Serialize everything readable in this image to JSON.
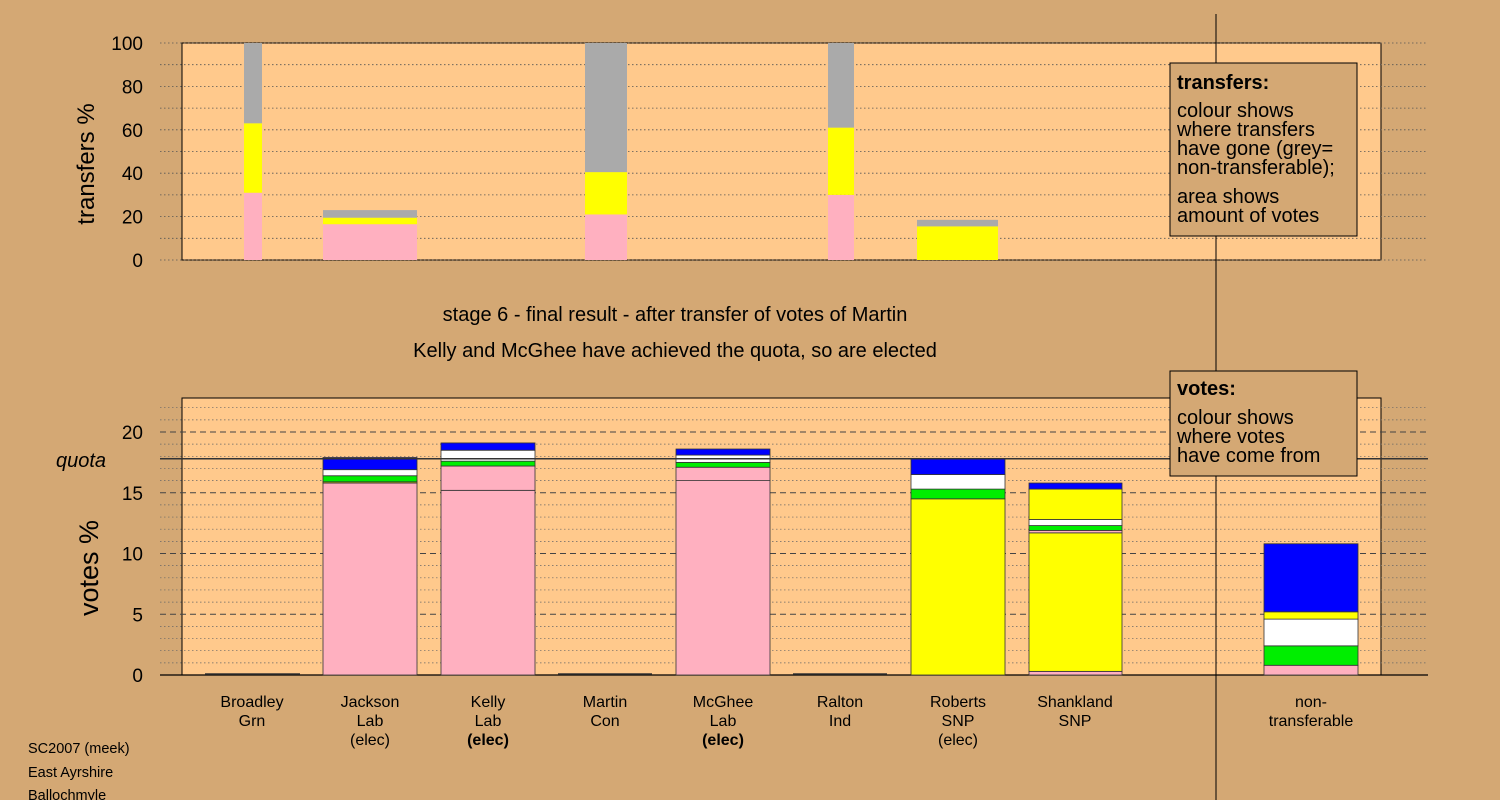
{
  "title_line1": "stage 6 - final result - after transfer of votes of Martin",
  "title_line2": "Kelly and McGhee have achieved the quota, so are elected",
  "footer": [
    "SC2007 (meek)",
    "East Ayrshire",
    "Ballochmyle"
  ],
  "legend_transfers": {
    "title": "transfers:",
    "lines1": [
      "colour shows",
      "where transfers",
      "have gone (grey=",
      "non-transferable);"
    ],
    "lines2": [
      "area shows",
      "amount of votes"
    ]
  },
  "legend_votes": {
    "title": "votes:",
    "lines": [
      "colour shows",
      "where votes",
      "have come from"
    ]
  },
  "colors": {
    "background": "#d4a874",
    "plot_bg": "#ffc98c",
    "Lab": "#ffb0c0",
    "SNP": "#ffff00",
    "Grn": "#00ee00",
    "Ind": "#ffffff",
    "Con": "#0000ff",
    "nontransferable": "#aaaaaa"
  },
  "chart_data": [
    {
      "type": "bar",
      "name": "transfers",
      "ylabel": "transfers %",
      "ylim": [
        0,
        100
      ],
      "yticks": [
        0,
        20,
        40,
        60,
        80,
        100
      ],
      "categories": [
        "Broadley",
        "Jackson",
        "Kelly",
        "Martin",
        "McGhee",
        "Ralton",
        "Roberts",
        "Shankland"
      ],
      "bars": [
        {
          "candidate": "Broadley",
          "segments": [
            {
              "color": "Lab",
              "value": 31
            },
            {
              "color": "SNP",
              "value": 32
            },
            {
              "color": "nontransferable",
              "value": 37
            }
          ]
        },
        {
          "candidate": "Jackson",
          "segments": [
            {
              "color": "Lab",
              "value": 16.5
            },
            {
              "color": "SNP",
              "value": 3
            },
            {
              "color": "nontransferable",
              "value": 3.5
            }
          ]
        },
        {
          "candidate": "Martin",
          "segments": [
            {
              "color": "Lab",
              "value": 21
            },
            {
              "color": "SNP",
              "value": 19.5
            },
            {
              "color": "nontransferable",
              "value": 59.5
            }
          ]
        },
        {
          "candidate": "Ralton",
          "segments": [
            {
              "color": "Lab",
              "value": 30
            },
            {
              "color": "SNP",
              "value": 31
            },
            {
              "color": "nontransferable",
              "value": 39
            }
          ]
        },
        {
          "candidate": "Roberts",
          "segments": [
            {
              "color": "SNP",
              "value": 15.5
            },
            {
              "color": "nontransferable",
              "value": 3
            }
          ]
        }
      ]
    },
    {
      "type": "bar",
      "name": "votes",
      "ylabel": "votes %",
      "ylim": [
        0,
        22
      ],
      "yticks": [
        0,
        5,
        10,
        15,
        20
      ],
      "quota": 17.8,
      "quota_label": "quota",
      "categories": [
        {
          "name": "Broadley",
          "party": "Grn",
          "status": ""
        },
        {
          "name": "Jackson",
          "party": "Lab",
          "status": "(elec)"
        },
        {
          "name": "Kelly",
          "party": "Lab",
          "status": "(elec)"
        },
        {
          "name": "Martin",
          "party": "Con",
          "status": ""
        },
        {
          "name": "McGhee",
          "party": "Lab",
          "status": "(elec)"
        },
        {
          "name": "Ralton",
          "party": "Ind",
          "status": ""
        },
        {
          "name": "Roberts",
          "party": "SNP",
          "status": "(elec)"
        },
        {
          "name": "Shankland",
          "party": "SNP",
          "status": ""
        },
        {
          "name": "non-",
          "party": "transferable",
          "status": ""
        }
      ],
      "bars": [
        {
          "candidate": "Broadley",
          "segments": []
        },
        {
          "candidate": "Jackson",
          "segments": [
            {
              "color": "Lab",
              "value": 15.8
            },
            {
              "color": "SNP",
              "value": 0.1
            },
            {
              "color": "Grn",
              "value": 0.5
            },
            {
              "color": "Ind",
              "value": 0.5
            },
            {
              "color": "Con",
              "value": 1.0
            }
          ]
        },
        {
          "candidate": "Kelly",
          "segments": [
            {
              "color": "Lab",
              "value": 15.2
            },
            {
              "color": "Lab",
              "value": 2.0
            },
            {
              "color": "Grn",
              "value": 0.4
            },
            {
              "color": "Ind",
              "value": 0.9
            },
            {
              "color": "Con",
              "value": 0.6
            }
          ]
        },
        {
          "candidate": "Martin",
          "segments": []
        },
        {
          "candidate": "McGhee",
          "segments": [
            {
              "color": "Lab",
              "value": 16.0
            },
            {
              "color": "Lab",
              "value": 1.1
            },
            {
              "color": "Grn",
              "value": 0.4
            },
            {
              "color": "Ind",
              "value": 0.6
            },
            {
              "color": "Con",
              "value": 0.5
            }
          ]
        },
        {
          "candidate": "Ralton",
          "segments": []
        },
        {
          "candidate": "Roberts",
          "segments": [
            {
              "color": "SNP",
              "value": 14.5
            },
            {
              "color": "Grn",
              "value": 0.8
            },
            {
              "color": "Ind",
              "value": 1.2
            },
            {
              "color": "Con",
              "value": 1.3
            }
          ]
        },
        {
          "candidate": "Shankland",
          "segments": [
            {
              "color": "Lab",
              "value": 0.3
            },
            {
              "color": "SNP",
              "value": 11.4
            },
            {
              "color": "Lab",
              "value": 0.2
            },
            {
              "color": "Grn",
              "value": 0.4
            },
            {
              "color": "Ind",
              "value": 0.5
            },
            {
              "color": "SNP",
              "value": 2.5
            },
            {
              "color": "Con",
              "value": 0.5
            }
          ]
        },
        {
          "candidate": "non-transferable",
          "segments": [
            {
              "color": "Lab",
              "value": 0.8
            },
            {
              "color": "Grn",
              "value": 1.6
            },
            {
              "color": "Ind",
              "value": 2.2
            },
            {
              "color": "SNP",
              "value": 0.6
            },
            {
              "color": "Con",
              "value": 5.6
            }
          ]
        }
      ]
    }
  ]
}
